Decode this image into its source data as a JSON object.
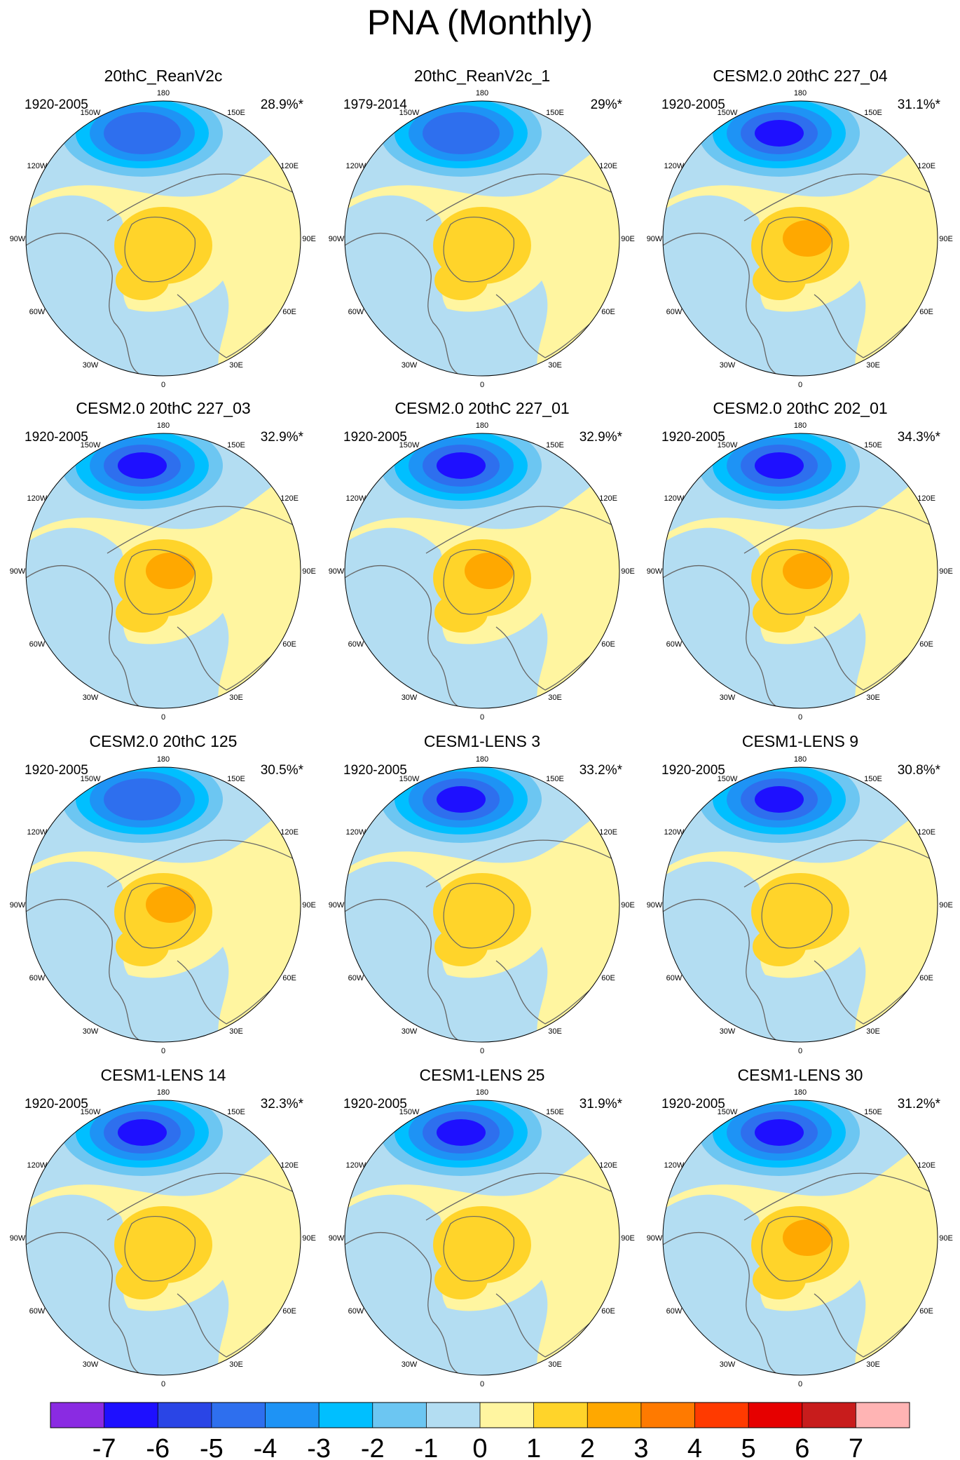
{
  "title": "PNA (Monthly)",
  "chart_data": {
    "type": "polar-stereographic contour maps (12 panels)",
    "variable": "PNA monthly pattern",
    "panels": [
      {
        "title": "20thC_ReanV2c",
        "period": "1920-2005",
        "variance": "28.9%*",
        "neg_max": -5,
        "pos_max": 2
      },
      {
        "title": "20thC_ReanV2c_1",
        "period": "1979-2014",
        "variance": "29%*",
        "neg_max": -5,
        "pos_max": 2
      },
      {
        "title": "CESM2.0 20thC 227_04",
        "period": "1920-2005",
        "variance": "31.1%*",
        "neg_max": -6,
        "pos_max": 3
      },
      {
        "title": "CESM2.0 20thC 227_03",
        "period": "1920-2005",
        "variance": "32.9%*",
        "neg_max": -6,
        "pos_max": 3
      },
      {
        "title": "CESM2.0 20thC 227_01",
        "period": "1920-2005",
        "variance": "32.9%*",
        "neg_max": -6,
        "pos_max": 3
      },
      {
        "title": "CESM2.0 20thC 202_01",
        "period": "1920-2005",
        "variance": "34.3%*",
        "neg_max": -6,
        "pos_max": 3
      },
      {
        "title": "CESM2.0 20thC 125",
        "period": "1920-2005",
        "variance": "30.5%*",
        "neg_max": -5,
        "pos_max": 3
      },
      {
        "title": "CESM1-LENS 3",
        "period": "1920-2005",
        "variance": "33.2%*",
        "neg_max": -6,
        "pos_max": 2
      },
      {
        "title": "CESM1-LENS 9",
        "period": "1920-2005",
        "variance": "30.8%*",
        "neg_max": -6,
        "pos_max": 2
      },
      {
        "title": "CESM1-LENS 14",
        "period": "1920-2005",
        "variance": "32.3%*",
        "neg_max": -6,
        "pos_max": 2
      },
      {
        "title": "CESM1-LENS 25",
        "period": "1920-2005",
        "variance": "31.9%*",
        "neg_max": -6,
        "pos_max": 2
      },
      {
        "title": "CESM1-LENS 30",
        "period": "1920-2005",
        "variance": "31.2%*",
        "neg_max": -6,
        "pos_max": 3
      }
    ],
    "longitude_labels": [
      "180",
      "150E",
      "120E",
      "90E",
      "60E",
      "30E",
      "0",
      "30W",
      "60W",
      "90W",
      "120W",
      "150W"
    ],
    "colorbar": {
      "labels": [
        "-7",
        "-6",
        "-5",
        "-4",
        "-3",
        "-2",
        "-1",
        "0",
        "1",
        "2",
        "3",
        "4",
        "5",
        "6",
        "7"
      ],
      "colors": [
        "#8a2be2",
        "#1e10ff",
        "#2a45e6",
        "#2e6fee",
        "#1e93f5",
        "#00bfff",
        "#6cc6f2",
        "#b3ddf2",
        "#fff5a0",
        "#ffd42a",
        "#ffa800",
        "#ff7a00",
        "#ff3a00",
        "#e60000",
        "#c81c1c",
        "#ffb4b4"
      ]
    },
    "fill_colors": {
      "land_bg": "#fff5a0",
      "neg1": "#b3ddf2",
      "neg2": "#6cc6f2",
      "neg3": "#00bfff",
      "neg4": "#1e93f5",
      "neg5": "#2e6fee",
      "neg6": "#1e10ff",
      "pos2": "#ffd42a",
      "pos3": "#ffa800"
    }
  }
}
